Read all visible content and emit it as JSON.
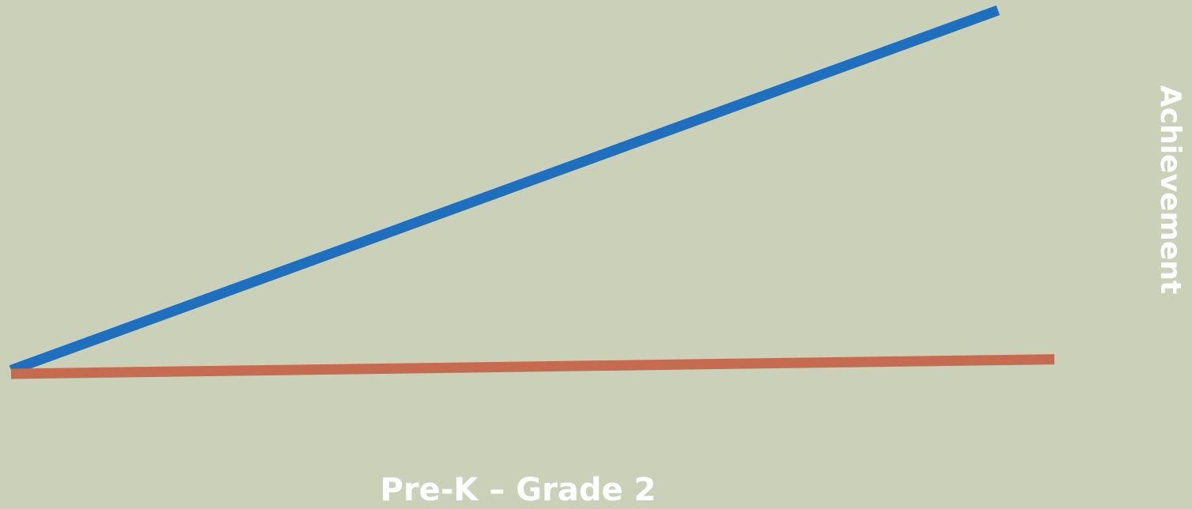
{
  "chart_data": {
    "type": "line",
    "x_label": "Pre-K – Grade 2",
    "y_label": "Achievement",
    "xlim": [
      0,
      100
    ],
    "ylim": [
      0,
      100
    ],
    "series": [
      {
        "color": "#1f6fbf",
        "x": [
          0,
          94.6
        ],
        "values": [
          1,
          100
        ]
      },
      {
        "color": "#c66a50",
        "x": [
          0,
          100
        ],
        "values": [
          0,
          4
        ]
      }
    ]
  }
}
